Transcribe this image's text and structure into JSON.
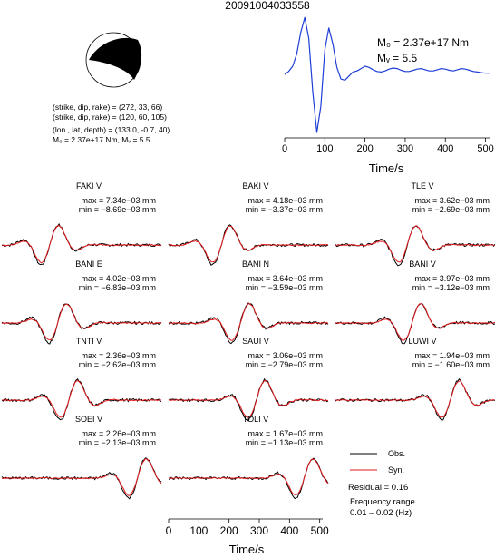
{
  "header": {
    "event_id": "20091004033558"
  },
  "source": {
    "line1": "(strike, dip, rake) = (272, 33, 66)",
    "line2": "(strike, dip, rake) = (120, 60, 105)",
    "line3": "(lon., lat, depth) = (133.0, -0.7, 40)",
    "line4": "M₀ = 2.37e+17 Nm, Mᵥ = 5.5"
  },
  "stf": {
    "m0_label": "M₀ = 2.37e+17 Nm",
    "mw_label": "Mᵥ = 5.5",
    "xlabel": "Time/s",
    "xticks": [
      "0",
      "100",
      "200",
      "300",
      "400",
      "500"
    ]
  },
  "legend": {
    "obs": "Obs.",
    "syn": "Syn.",
    "obs_color": "#000000",
    "syn_color": "#e31a1c",
    "residual": "Residual = 0.16",
    "freq_title": "Frequency range",
    "freq_value": "0.01 – 0.02 (Hz)"
  },
  "bottom_axis": {
    "xlabel": "Time/s",
    "xticks": [
      "0",
      "100",
      "200",
      "300",
      "400",
      "500"
    ]
  },
  "traces": [
    {
      "station": "FAKI V",
      "max": "max = 7.34e−03 mm",
      "min": "min = −8.69e−03 mm"
    },
    {
      "station": "BAKI V",
      "max": "max = 4.18e−03 mm",
      "min": "min = −3.37e−03 mm"
    },
    {
      "station": "TLE V",
      "max": "max = 3.62e−03 mm",
      "min": "min = −2.69e−03 mm"
    },
    {
      "station": "BANI E",
      "max": "max = 4.02e−03 mm",
      "min": "min = −6.83e−03 mm"
    },
    {
      "station": "BANI N",
      "max": "max = 3.64e−03 mm",
      "min": "min = −3.59e−03 mm"
    },
    {
      "station": "BANI V",
      "max": "max = 3.97e−03 mm",
      "min": "min = −3.12e−03 mm"
    },
    {
      "station": "TNTI V",
      "max": "max = 2.36e−03 mm",
      "min": "min = −2.62e−03 mm"
    },
    {
      "station": "SAUI V",
      "max": "max = 3.06e−03 mm",
      "min": "min = −2.79e−03 mm"
    },
    {
      "station": "LUWI V",
      "max": "max = 1.94e−03 mm",
      "min": "min = −1.60e−03 mm"
    },
    {
      "station": "SOEI V",
      "max": "max = 2.26e−03 mm",
      "min": "min = −2.13e−03 mm"
    },
    {
      "station": "TOLI V",
      "max": "max = 1.67e−03 mm",
      "min": "min = −1.13e−03 mm"
    }
  ],
  "chart_data": [
    {
      "type": "line",
      "title": "",
      "xlabel": "Time/s",
      "ylabel": "",
      "xlim": [
        0,
        510
      ],
      "x": [
        0,
        10,
        20,
        30,
        40,
        50,
        60,
        70,
        80,
        90,
        100,
        110,
        120,
        130,
        140,
        150,
        160,
        170,
        180,
        190,
        200,
        210,
        220,
        230,
        240,
        250,
        260,
        270,
        280,
        290,
        300,
        310,
        320,
        330,
        340,
        350,
        360,
        370,
        380,
        390,
        400,
        410,
        420,
        430,
        440,
        450,
        460,
        470,
        480,
        490,
        500,
        510
      ],
      "series": [
        {
          "values": [
            0.0,
            0.05,
            0.14,
            0.35,
            0.72,
            0.98,
            0.62,
            -0.3,
            -1.0,
            -0.55,
            0.42,
            0.8,
            0.52,
            0.12,
            -0.08,
            -0.1,
            -0.03,
            0.04,
            0.06,
            0.1,
            0.14,
            0.12,
            0.08,
            0.05,
            0.04,
            0.06,
            0.09,
            0.11,
            0.1,
            0.07,
            0.05,
            0.05,
            0.07,
            0.09,
            0.1,
            0.08,
            0.06,
            0.06,
            0.08,
            0.1,
            0.09,
            0.07,
            0.06,
            0.08,
            0.1,
            0.09,
            0.07,
            0.05,
            0.04,
            0.03,
            0.02,
            0.02
          ]
        }
      ]
    },
    {
      "type": "line",
      "title": "",
      "xlabel": "Time/s",
      "ylabel": "",
      "xlim": [
        0,
        510
      ],
      "panels": [
        {
          "station": "FAKI V",
          "obs_peaks": [
            [
              150,
              0.2
            ],
            [
              190,
              -0.55
            ],
            [
              230,
              0.9
            ],
            [
              255,
              -1.0
            ],
            [
              290,
              0.55
            ],
            [
              320,
              -0.3
            ],
            [
              360,
              0.15
            ]
          ],
          "syn_peaks": [
            [
              170,
              0.12
            ],
            [
              205,
              -0.4
            ],
            [
              235,
              0.82
            ],
            [
              258,
              -0.95
            ],
            [
              292,
              0.5
            ],
            [
              325,
              -0.28
            ],
            [
              365,
              0.12
            ]
          ]
        },
        {
          "station": "BAKI V",
          "obs_peaks": [
            [
              150,
              0.15
            ],
            [
              190,
              -0.6
            ],
            [
              220,
              0.95
            ],
            [
              245,
              -0.65
            ],
            [
              275,
              0.4
            ],
            [
              320,
              -0.2
            ]
          ],
          "syn_peaks": [
            [
              170,
              0.1
            ],
            [
              205,
              -0.45
            ],
            [
              228,
              1.0
            ],
            [
              250,
              -0.6
            ],
            [
              282,
              0.35
            ],
            [
              325,
              -0.18
            ]
          ]
        },
        {
          "station": "TLE V",
          "obs_peaks": [
            [
              140,
              0.15
            ],
            [
              175,
              -0.35
            ],
            [
              215,
              0.5
            ],
            [
              240,
              -0.7
            ],
            [
              265,
              1.0
            ],
            [
              290,
              -0.8
            ],
            [
              330,
              0.55
            ],
            [
              380,
              -0.5
            ],
            [
              430,
              0.45
            ]
          ],
          "syn_peaks": [
            [
              160,
              0.1
            ],
            [
              190,
              -0.3
            ],
            [
              220,
              0.45
            ],
            [
              245,
              -0.6
            ],
            [
              268,
              0.95
            ],
            [
              295,
              -0.7
            ],
            [
              335,
              0.35
            ],
            [
              390,
              -0.25
            ],
            [
              440,
              0.2
            ]
          ]
        }
      ]
    }
  ]
}
